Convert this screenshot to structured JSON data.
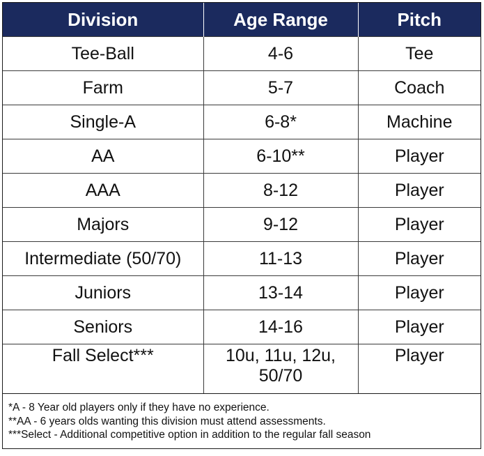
{
  "table": {
    "headers": [
      "Division",
      "Age Range",
      "Pitch"
    ],
    "rows": [
      [
        "Tee-Ball",
        "4-6",
        "Tee"
      ],
      [
        "Farm",
        "5-7",
        "Coach"
      ],
      [
        "Single-A",
        "6-8*",
        "Machine"
      ],
      [
        "AA",
        "6-10**",
        "Player"
      ],
      [
        "AAA",
        "8-12",
        "Player"
      ],
      [
        "Majors",
        "9-12",
        "Player"
      ],
      [
        "Intermediate (50/70)",
        "11-13",
        "Player"
      ],
      [
        "Juniors",
        "13-14",
        "Player"
      ],
      [
        "Seniors",
        "14-16",
        "Player"
      ],
      [
        "Fall Select***",
        "10u, 11u, 12u, 50/70",
        "Player"
      ]
    ]
  },
  "footnotes": [
    "*A - 8 Year old players only if they have no experience.",
    "**AA - 6 years olds wanting this division must attend assessments.",
    "***Select - Additional competitive option in addition to the regular fall season"
  ],
  "colors": {
    "header_background": "#1b2a5e",
    "header_text": "#ffffff"
  }
}
